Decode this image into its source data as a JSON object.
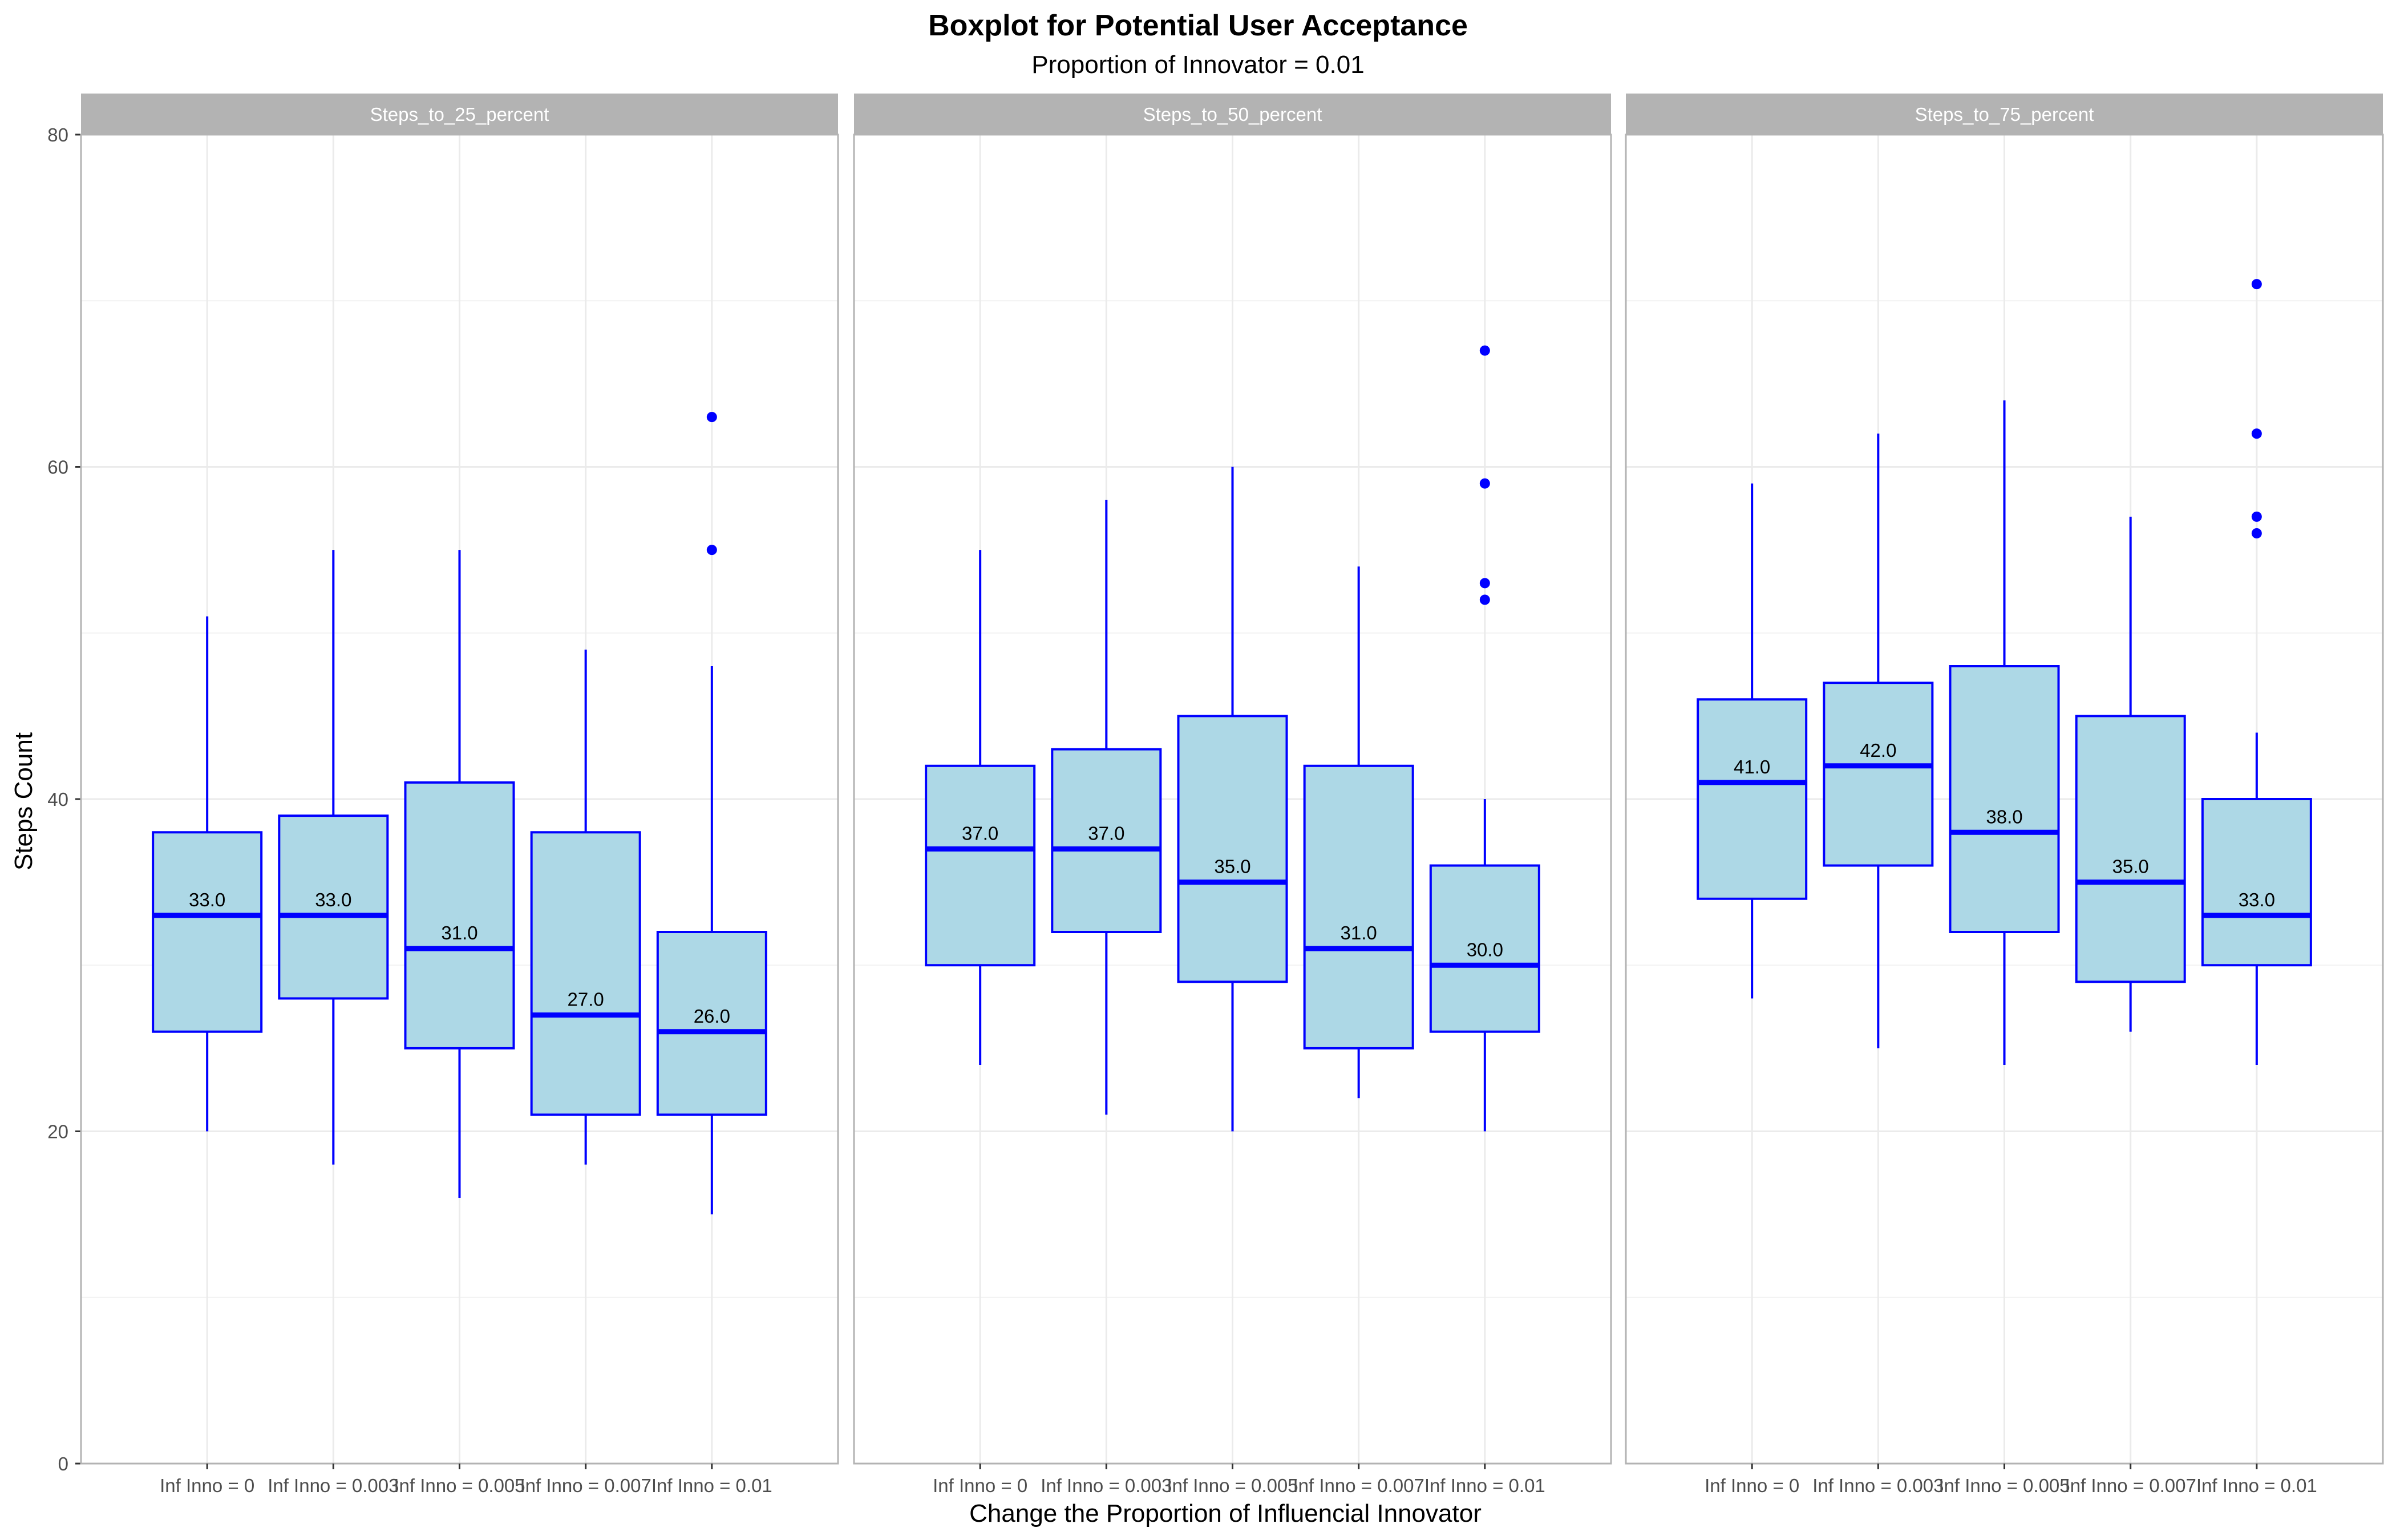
{
  "chart_data": {
    "type": "boxplot",
    "title": "Boxplot for Potential User Acceptance",
    "subtitle": "Proportion of Innovator = 0.01",
    "xlabel": "Change the Proportion of Influencial Innovator",
    "ylabel": "Steps Count",
    "ylim": [
      0,
      80
    ],
    "yticks": [
      0,
      20,
      40,
      60,
      80
    ],
    "grid": true,
    "colors": {
      "box_fill": "#add8e6",
      "box_line": "#0000ff",
      "strip": "#b3b3b3",
      "grid": "#ebebeb",
      "border": "#b3b3b3"
    },
    "categories": [
      "Inf Inno = 0",
      "Inf Inno = 0.003",
      "Inf Inno = 0.005",
      "Inf Inno = 0.007",
      "Inf Inno = 0.01"
    ],
    "panels": [
      {
        "label": "Steps_to_25_percent",
        "boxes": [
          {
            "q1": 26,
            "median": 33,
            "q3": 38,
            "whisker_low": 20,
            "whisker_high": 51,
            "outliers": [],
            "median_label": "33.0"
          },
          {
            "q1": 28,
            "median": 33,
            "q3": 39,
            "whisker_low": 18,
            "whisker_high": 55,
            "outliers": [],
            "median_label": "33.0"
          },
          {
            "q1": 25,
            "median": 31,
            "q3": 41,
            "whisker_low": 16,
            "whisker_high": 55,
            "outliers": [],
            "median_label": "31.0"
          },
          {
            "q1": 21,
            "median": 27,
            "q3": 38,
            "whisker_low": 18,
            "whisker_high": 49,
            "outliers": [],
            "median_label": "27.0"
          },
          {
            "q1": 21,
            "median": 26,
            "q3": 32,
            "whisker_low": 15,
            "whisker_high": 48,
            "outliers": [
              55,
              63
            ],
            "median_label": "26.0"
          }
        ]
      },
      {
        "label": "Steps_to_50_percent",
        "boxes": [
          {
            "q1": 30,
            "median": 37,
            "q3": 42,
            "whisker_low": 24,
            "whisker_high": 55,
            "outliers": [],
            "median_label": "37.0"
          },
          {
            "q1": 32,
            "median": 37,
            "q3": 43,
            "whisker_low": 21,
            "whisker_high": 58,
            "outliers": [],
            "median_label": "37.0"
          },
          {
            "q1": 29,
            "median": 35,
            "q3": 45,
            "whisker_low": 20,
            "whisker_high": 60,
            "outliers": [],
            "median_label": "35.0"
          },
          {
            "q1": 25,
            "median": 31,
            "q3": 42,
            "whisker_low": 22,
            "whisker_high": 54,
            "outliers": [],
            "median_label": "31.0"
          },
          {
            "q1": 26,
            "median": 30,
            "q3": 36,
            "whisker_low": 20,
            "whisker_high": 40,
            "outliers": [
              52,
              53,
              59,
              67
            ],
            "median_label": "30.0"
          }
        ]
      },
      {
        "label": "Steps_to_75_percent",
        "boxes": [
          {
            "q1": 34,
            "median": 41,
            "q3": 46,
            "whisker_low": 28,
            "whisker_high": 59,
            "outliers": [],
            "median_label": "41.0"
          },
          {
            "q1": 36,
            "median": 42,
            "q3": 47,
            "whisker_low": 25,
            "whisker_high": 62,
            "outliers": [],
            "median_label": "42.0"
          },
          {
            "q1": 32,
            "median": 38,
            "q3": 48,
            "whisker_low": 24,
            "whisker_high": 64,
            "outliers": [],
            "median_label": "38.0"
          },
          {
            "q1": 29,
            "median": 35,
            "q3": 45,
            "whisker_low": 26,
            "whisker_high": 57,
            "outliers": [],
            "median_label": "35.0"
          },
          {
            "q1": 30,
            "median": 33,
            "q3": 40,
            "whisker_low": 24,
            "whisker_high": 44,
            "outliers": [
              56,
              57,
              62,
              71
            ],
            "median_label": "33.0"
          }
        ]
      }
    ]
  }
}
